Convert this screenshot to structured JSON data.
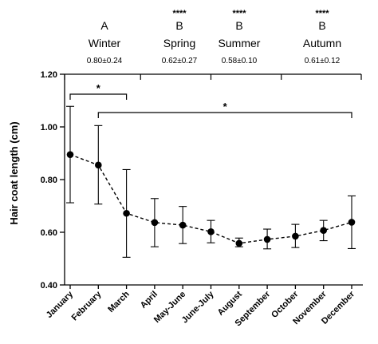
{
  "chart_data": {
    "type": "line",
    "categories": [
      "January",
      "February",
      "March",
      "April",
      "May-June",
      "June-July",
      "August",
      "September",
      "October",
      "November",
      "December"
    ],
    "values": [
      0.895,
      0.855,
      0.672,
      0.637,
      0.627,
      0.602,
      0.558,
      0.573,
      0.585,
      0.607,
      0.638
    ],
    "error_low": [
      0.712,
      0.707,
      0.505,
      0.545,
      0.557,
      0.56,
      0.545,
      0.537,
      0.542,
      0.568,
      0.538
    ],
    "error_high": [
      1.078,
      1.005,
      0.838,
      0.728,
      0.698,
      0.645,
      0.578,
      0.612,
      0.63,
      0.645,
      0.738
    ],
    "ylabel": "Hair coat length (cm)",
    "ylim": [
      0.4,
      1.2
    ],
    "yticks": [
      "0.40",
      "0.60",
      "0.80",
      "1.00",
      "1.20"
    ],
    "line_style": "dashed",
    "seasons": [
      {
        "stars": "",
        "letter": "A",
        "name": "Winter",
        "stat": "0.80±0.24"
      },
      {
        "stars": "****",
        "letter": "B",
        "name": "Spring",
        "stat": "0.62±0.27"
      },
      {
        "stars": "****",
        "letter": "B",
        "name": "Summer",
        "stat": "0.58±0.10"
      },
      {
        "stars": "****",
        "letter": "B",
        "name": "Autumn",
        "stat": "0.61±0.12"
      }
    ],
    "season_boundaries": [
      "March|April",
      "June-July",
      "September|October"
    ],
    "significance": [
      {
        "from": "January",
        "to": "March",
        "label": "*"
      },
      {
        "from": "February",
        "to": "December",
        "label": "*"
      }
    ],
    "grid": false
  }
}
